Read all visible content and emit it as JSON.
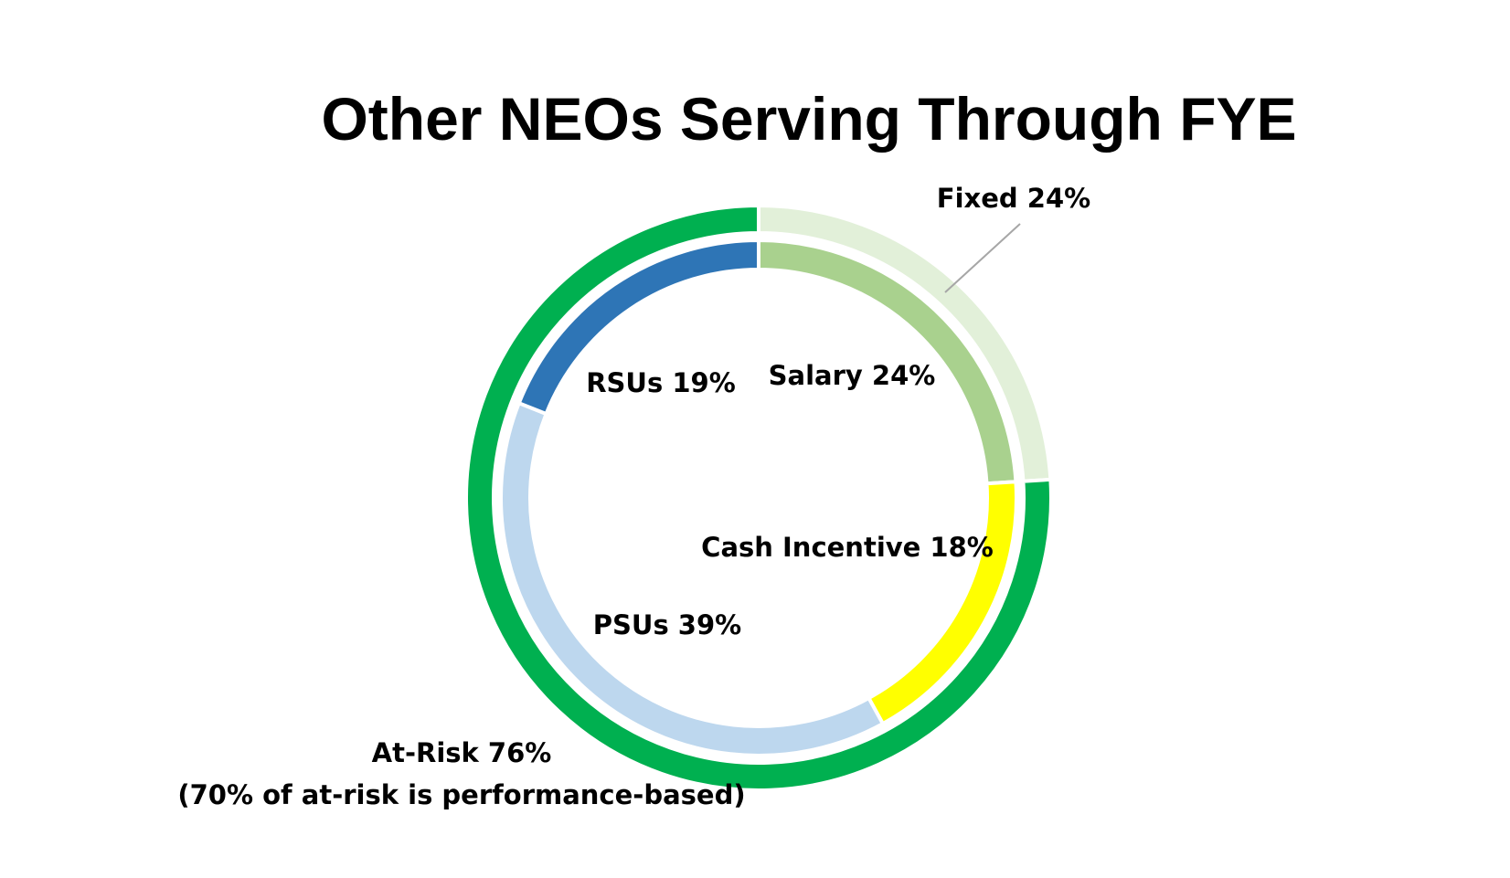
{
  "chart_data": {
    "type": "pie",
    "title": "Other NEOs Serving Through FYE",
    "rings": [
      {
        "name": "",
        "ring": "outer",
        "slices": [
          {
            "label": "Fixed 24%",
            "value": 24,
            "color": "#E2F0D9"
          },
          {
            "label": "At-Risk 76%",
            "note": "(70% of at-risk is performance-based)",
            "value": 76,
            "color": "#00B050"
          }
        ]
      },
      {
        "name": "",
        "ring": "inner",
        "slices": [
          {
            "label": "Salary 24%",
            "value": 24,
            "color": "#A9D18E"
          },
          {
            "label": "Cash Incentive 18%",
            "value": 18,
            "color": "#FFFF00"
          },
          {
            "label": "PSUs 39%",
            "value": 39,
            "color": "#BDD7EE"
          },
          {
            "label": "RSUs 19%",
            "value": 19,
            "color": "#2E75B6"
          }
        ]
      }
    ],
    "legend": "none",
    "leader_line_color": "#A6A6A6"
  }
}
